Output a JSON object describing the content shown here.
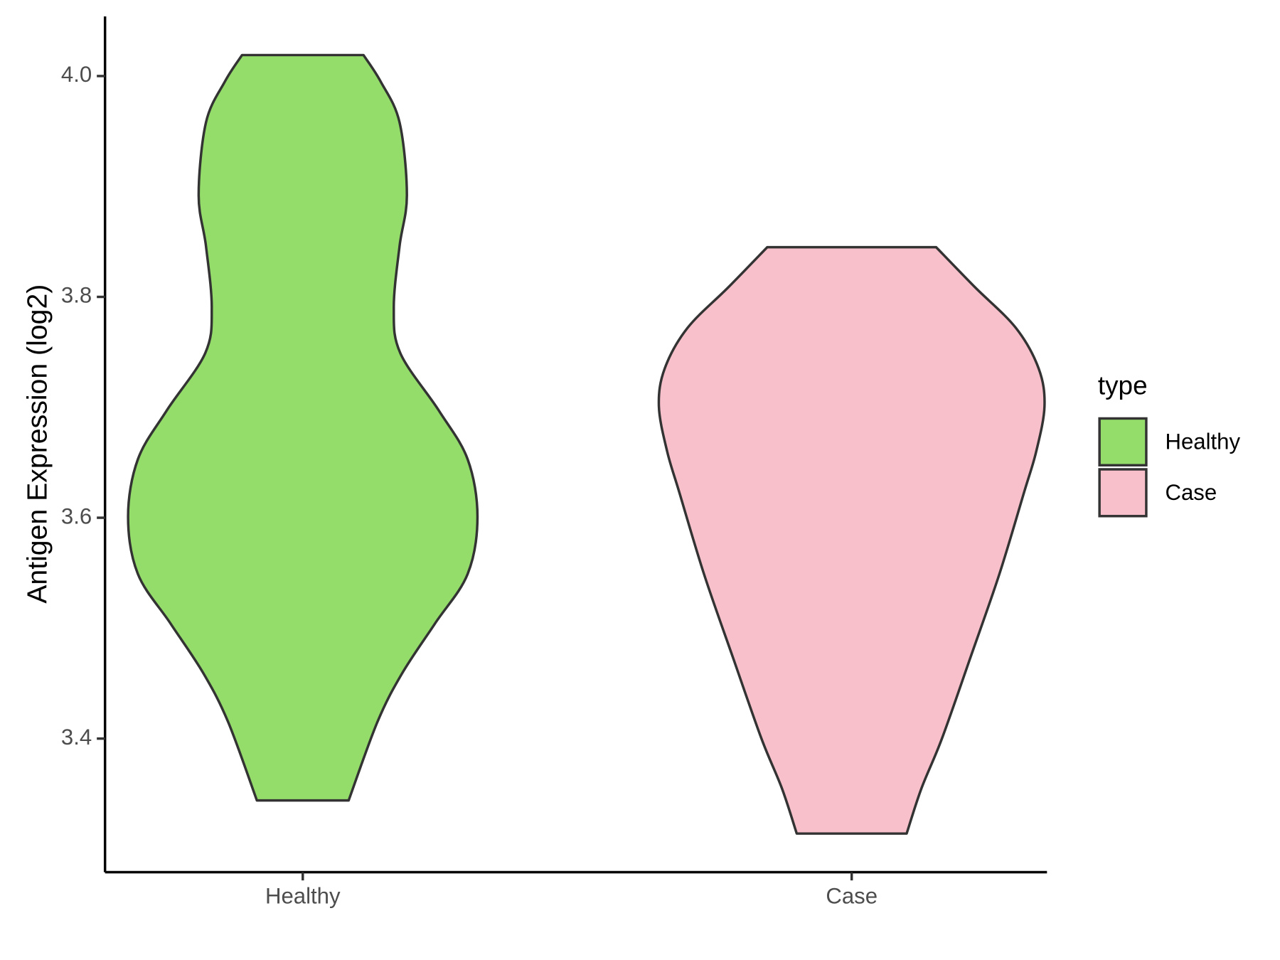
{
  "chart_data": {
    "type": "violin",
    "y_label": "Antigen Expression (log2)",
    "categories": [
      "Healthy",
      "Case"
    ],
    "ylim": [
      3.279,
      4.054
    ],
    "yticks": [
      {
        "value": 3.4,
        "label": "3.4"
      },
      {
        "value": 3.6,
        "label": "3.6"
      },
      {
        "value": 3.8,
        "label": "3.8"
      },
      {
        "value": 4.0,
        "label": "4.0"
      }
    ],
    "legend_title": "type",
    "legend_position": "right",
    "series": [
      {
        "name": "Healthy",
        "color": "#94dd6b",
        "y": [
          4.019,
          3.995,
          3.958,
          3.892,
          3.846,
          3.79,
          3.749,
          3.697,
          3.653,
          3.601,
          3.549,
          3.504,
          3.459,
          3.415,
          3.344
        ],
        "width": [
          0.315,
          0.404,
          0.502,
          0.54,
          0.502,
          0.472,
          0.506,
          0.706,
          0.855,
          0.906,
          0.855,
          0.685,
          0.515,
          0.387,
          0.238
        ]
      },
      {
        "name": "Case",
        "color": "#f8c0cb",
        "y": [
          3.845,
          3.809,
          3.772,
          3.735,
          3.701,
          3.66,
          3.623,
          3.549,
          3.474,
          3.4,
          3.355,
          3.314
        ],
        "width": [
          0.438,
          0.638,
          0.851,
          0.97,
          1.0,
          0.957,
          0.894,
          0.766,
          0.617,
          0.468,
          0.362,
          0.285
        ]
      }
    ]
  }
}
